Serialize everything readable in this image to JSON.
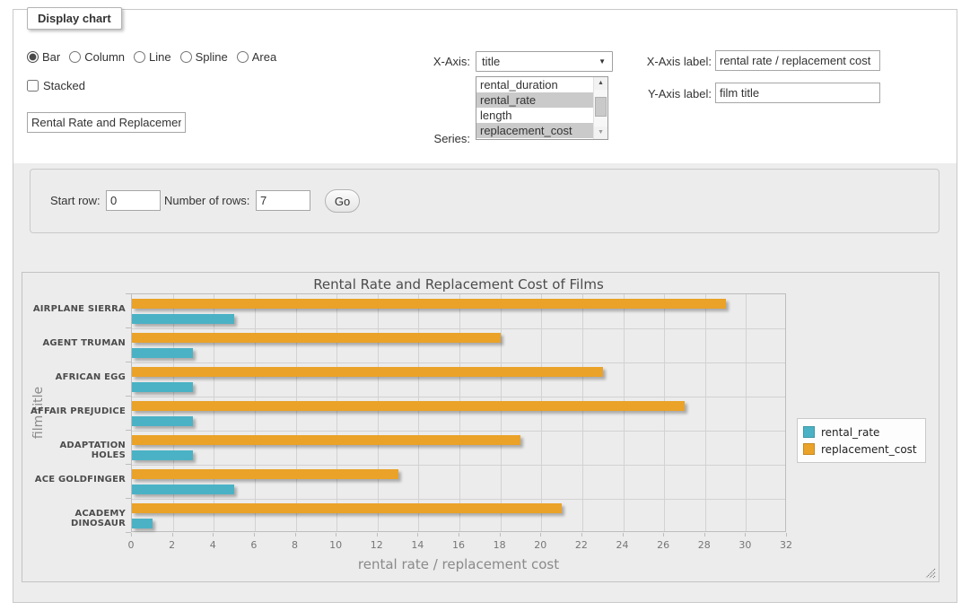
{
  "form": {
    "legend": "Display chart",
    "chart_types": [
      {
        "label": "Bar",
        "checked": true
      },
      {
        "label": "Column",
        "checked": false
      },
      {
        "label": "Line",
        "checked": false
      },
      {
        "label": "Spline",
        "checked": false
      },
      {
        "label": "Area",
        "checked": false
      }
    ],
    "stacked": {
      "label": "Stacked",
      "checked": false
    },
    "chart_title_value": "Rental Rate and Replacement Cost of Films",
    "x_axis": {
      "label": "X-Axis:",
      "selected": "title"
    },
    "series_select": {
      "label": "Series:",
      "options": [
        {
          "label": "rental_duration",
          "selected": false
        },
        {
          "label": "rental_rate",
          "selected": true
        },
        {
          "label": "length",
          "selected": false
        },
        {
          "label": "replacement_cost",
          "selected": true
        }
      ]
    },
    "x_axis_label": {
      "label": "X-Axis label:",
      "value": "rental rate / replacement cost"
    },
    "y_axis_label": {
      "label": "Y-Axis label:",
      "value": "film title"
    }
  },
  "rows_panel": {
    "start_row_label": "Start row:",
    "start_row_value": "0",
    "rows_label": "Number of rows:",
    "rows_value": "7",
    "go_label": "Go"
  },
  "chart_data": {
    "type": "bar",
    "orientation": "horizontal",
    "title": "Rental Rate and Replacement Cost of Films",
    "categories": [
      "AIRPLANE SIERRA",
      "AGENT TRUMAN",
      "AFRICAN EGG",
      "AFFAIR PREJUDICE",
      "ADAPTATION HOLES",
      "ACE GOLDFINGER",
      "ACADEMY DINOSAUR"
    ],
    "series": [
      {
        "name": "rental_rate",
        "color": "#4bb2c5",
        "values": [
          5,
          3,
          3,
          3,
          3,
          5,
          1
        ]
      },
      {
        "name": "replacement_cost",
        "color": "#eaa228",
        "values": [
          29,
          18,
          23,
          27,
          19,
          13,
          21
        ]
      }
    ],
    "bar_row_order_top_to_bottom": [
      "replacement_cost",
      "rental_rate"
    ],
    "xlabel": "rental rate / replacement cost",
    "ylabel": "film title",
    "xlim": [
      0,
      32
    ],
    "xticks": [
      0,
      2,
      4,
      6,
      8,
      10,
      12,
      14,
      16,
      18,
      20,
      22,
      24,
      26,
      28,
      30,
      32
    ],
    "grid": true,
    "legend_position": "right"
  }
}
